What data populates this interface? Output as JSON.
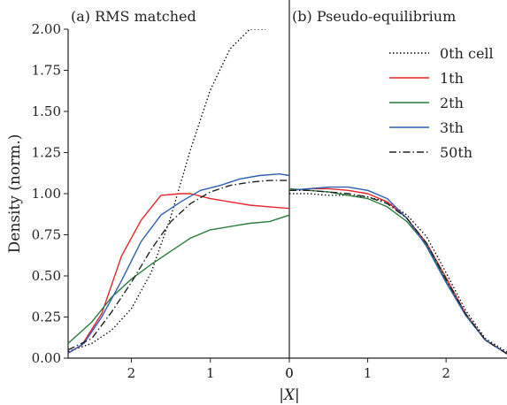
{
  "chart_data": [
    {
      "type": "line",
      "title": "(a) RMS matched",
      "xlabel": "|X|",
      "ylabel": "Density (norm.)",
      "x_reversed": true,
      "xlim": [
        2.8,
        0
      ],
      "ylim": [
        0,
        2
      ],
      "xticks": [
        "2",
        "1",
        "0"
      ],
      "yticks": [
        "0.00",
        "0.25",
        "0.50",
        "0.75",
        "1.00",
        "1.25",
        "1.50",
        "1.75",
        "2.00"
      ],
      "series": [
        {
          "name": "0th cell",
          "style": "dotted",
          "color": "#000000",
          "x": [
            2.8,
            2.5,
            2.25,
            2.0,
            1.75,
            1.5,
            1.25,
            1.0,
            0.75,
            0.5,
            0.3
          ],
          "y": [
            0.04,
            0.09,
            0.17,
            0.3,
            0.52,
            0.86,
            1.27,
            1.63,
            1.88,
            2.0,
            2.0
          ]
        },
        {
          "name": "1th",
          "style": "solid",
          "color": "#e3262b",
          "x": [
            2.8,
            2.625,
            2.375,
            2.125,
            1.875,
            1.625,
            1.375,
            1.25,
            1.0,
            0.75,
            0.5,
            0.25,
            0.0
          ],
          "y": [
            0.03,
            0.08,
            0.27,
            0.62,
            0.84,
            0.99,
            1.0,
            1.0,
            0.97,
            0.95,
            0.93,
            0.92,
            0.91
          ]
        },
        {
          "name": "2th",
          "style": "solid",
          "color": "#2a7d3f",
          "x": [
            2.8,
            2.5,
            2.25,
            2.0,
            1.75,
            1.5,
            1.25,
            1.0,
            0.75,
            0.5,
            0.25,
            0.0
          ],
          "y": [
            0.09,
            0.22,
            0.37,
            0.48,
            0.57,
            0.65,
            0.73,
            0.78,
            0.8,
            0.82,
            0.83,
            0.87
          ]
        },
        {
          "name": "3th",
          "style": "solid",
          "color": "#2e5fb0",
          "x": [
            2.8,
            2.6,
            2.375,
            2.125,
            1.875,
            1.625,
            1.375,
            1.125,
            0.875,
            0.625,
            0.375,
            0.125,
            0.0
          ],
          "y": [
            0.03,
            0.09,
            0.25,
            0.47,
            0.71,
            0.87,
            0.95,
            1.02,
            1.05,
            1.09,
            1.11,
            1.12,
            1.11
          ]
        },
        {
          "name": "50th",
          "style": "dashdot",
          "color": "#222222",
          "x": [
            2.8,
            2.5,
            2.25,
            2.0,
            1.75,
            1.5,
            1.25,
            1.0,
            0.75,
            0.5,
            0.25,
            0.0
          ],
          "y": [
            0.05,
            0.12,
            0.28,
            0.46,
            0.66,
            0.83,
            0.94,
            1.01,
            1.05,
            1.07,
            1.08,
            1.08
          ]
        }
      ]
    },
    {
      "type": "line",
      "title": "(b) Pseudo-equilibrium",
      "xlim": [
        0,
        2.8
      ],
      "ylim": [
        0,
        2
      ],
      "xticks": [
        "0",
        "1",
        "2"
      ],
      "legend": {
        "position": "top-right"
      },
      "series": [
        {
          "name": "0th cell",
          "style": "dotted",
          "color": "#000000",
          "x": [
            0.0,
            0.25,
            0.5,
            0.75,
            1.0,
            1.25,
            1.5,
            1.75,
            2.0,
            2.25,
            2.5,
            2.8
          ],
          "y": [
            1.0,
            1.0,
            0.99,
            0.99,
            0.98,
            0.95,
            0.87,
            0.74,
            0.52,
            0.29,
            0.12,
            0.03
          ]
        },
        {
          "name": "1th",
          "style": "solid",
          "color": "#e3262b",
          "x": [
            0.0,
            0.25,
            0.5,
            0.75,
            1.0,
            1.25,
            1.5,
            1.75,
            2.0,
            2.25,
            2.5,
            2.8
          ],
          "y": [
            1.02,
            1.03,
            1.03,
            1.02,
            1.0,
            0.95,
            0.85,
            0.7,
            0.49,
            0.27,
            0.11,
            0.02
          ]
        },
        {
          "name": "2th",
          "style": "solid",
          "color": "#2a7d3f",
          "x": [
            0.0,
            0.25,
            0.5,
            0.75,
            1.0,
            1.25,
            1.5,
            1.75,
            2.0,
            2.25,
            2.5,
            2.8
          ],
          "y": [
            1.03,
            1.02,
            1.01,
            0.99,
            0.97,
            0.92,
            0.83,
            0.69,
            0.47,
            0.26,
            0.11,
            0.02
          ]
        },
        {
          "name": "3th",
          "style": "solid",
          "color": "#2e5fb0",
          "x": [
            0.0,
            0.25,
            0.5,
            0.75,
            1.0,
            1.25,
            1.5,
            1.75,
            2.0,
            2.25,
            2.5,
            2.8
          ],
          "y": [
            1.02,
            1.03,
            1.04,
            1.04,
            1.02,
            0.97,
            0.85,
            0.68,
            0.46,
            0.26,
            0.11,
            0.02
          ]
        },
        {
          "name": "50th",
          "style": "dashdot",
          "color": "#222222",
          "x": [
            0.0,
            0.25,
            0.5,
            0.75,
            1.0,
            1.25,
            1.5,
            1.75,
            2.0,
            2.25,
            2.5,
            2.8
          ],
          "y": [
            1.02,
            1.02,
            1.01,
            1.0,
            0.98,
            0.94,
            0.85,
            0.7,
            0.48,
            0.27,
            0.11,
            0.02
          ]
        }
      ]
    }
  ]
}
